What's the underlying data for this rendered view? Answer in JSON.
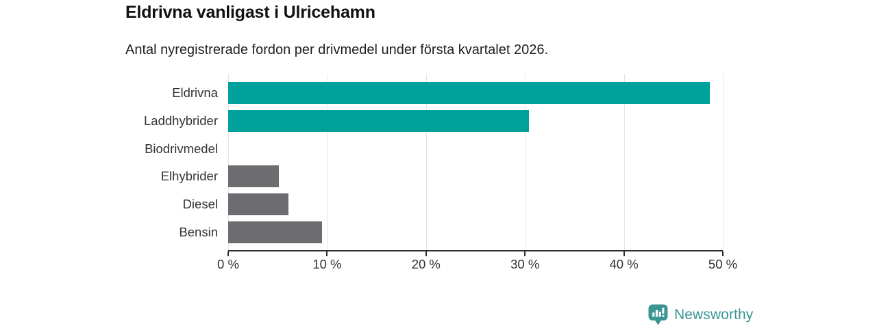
{
  "header": {
    "title": "Eldrivna vanligast i Ulricehamn",
    "subtitle": "Antal nyregistrerade fordon per drivmedel under första kvartalet 2026."
  },
  "chart_data": {
    "type": "bar",
    "orientation": "horizontal",
    "title": "Eldrivna vanligast i Ulricehamn",
    "subtitle": "Antal nyregistrerade fordon per drivmedel under första kvartalet 2026.",
    "categories": [
      "Eldrivna",
      "Laddhybrider",
      "Biodrivmedel",
      "Elhybrider",
      "Diesel",
      "Bensin"
    ],
    "values": [
      48.7,
      30.4,
      0,
      5.1,
      6.1,
      9.5
    ],
    "unit": "%",
    "xlabel": "",
    "ylabel": "",
    "xlim": [
      0,
      50
    ],
    "x_ticks": [
      0,
      10,
      20,
      30,
      40,
      50
    ],
    "x_tick_labels": [
      "0 %",
      "10 %",
      "20 %",
      "30 %",
      "40 %",
      "50 %"
    ],
    "grid": "vertical-only",
    "legend": "none",
    "bar_colors": [
      "#00a19a",
      "#00a19a",
      "#6d6d71",
      "#6d6d71",
      "#6d6d71",
      "#6d6d71"
    ],
    "colors": {
      "highlight": "#00a19a",
      "default_bar": "#6d6d71",
      "gridline": "#e5e5e5",
      "axis": "#2f2f2f",
      "text": "#333333"
    }
  },
  "footer": {
    "logo_text": "Newsworthy",
    "logo_color": "#3a9593"
  }
}
